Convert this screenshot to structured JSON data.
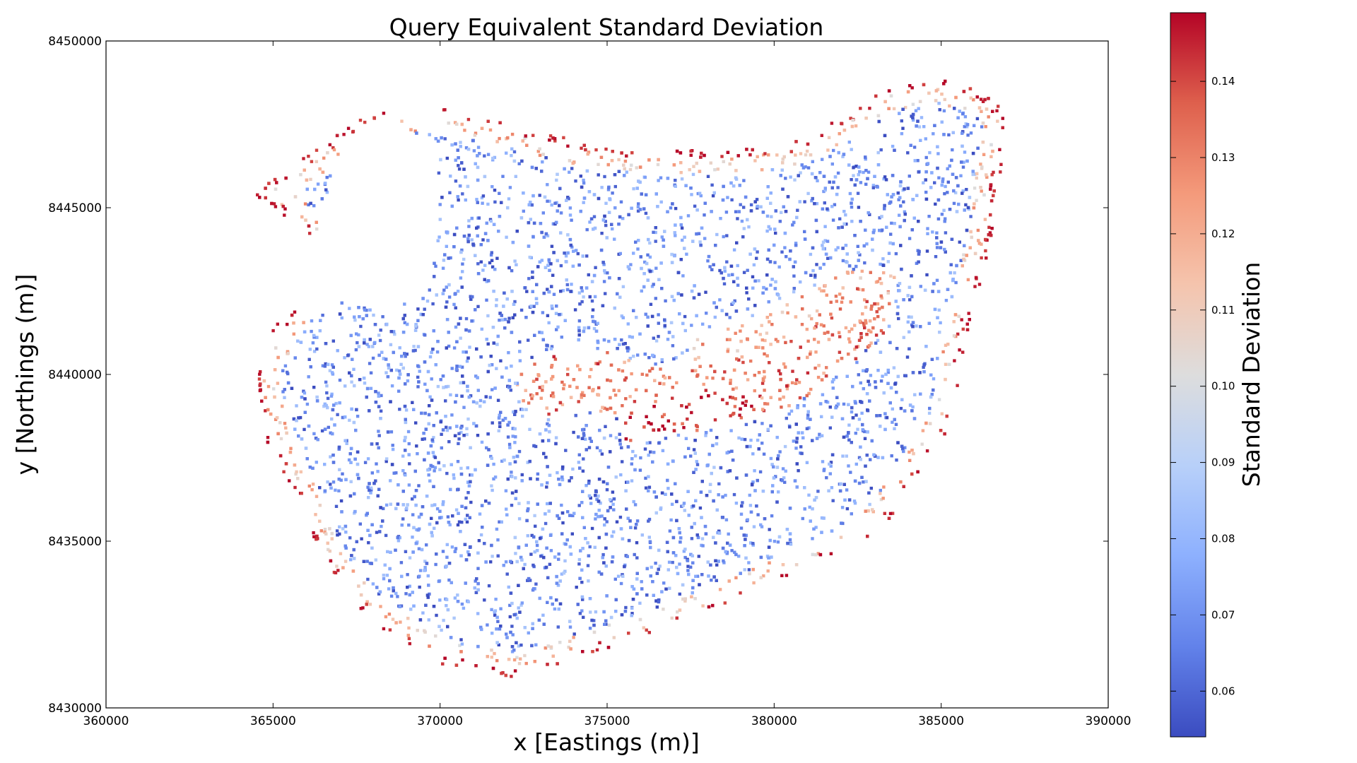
{
  "chart_data": {
    "type": "scatter",
    "title": "Query Equivalent Standard Deviation",
    "xlabel": "x [Eastings (m)]",
    "ylabel": "y [Northings (m)]",
    "xlim": [
      360000,
      390000
    ],
    "ylim": [
      8430000,
      8450000
    ],
    "xticks": [
      360000,
      365000,
      370000,
      375000,
      380000,
      385000,
      390000
    ],
    "yticks": [
      8430000,
      8435000,
      8440000,
      8445000,
      8450000
    ],
    "xtick_labels": [
      "360000",
      "365000",
      "370000",
      "375000",
      "380000",
      "385000",
      "390000"
    ],
    "ytick_labels": [
      "8430000",
      "8435000",
      "8440000",
      "8445000",
      "8450000"
    ],
    "grid": false,
    "colormap": "coolwarm",
    "colorbar": {
      "label": "Standard Deviation",
      "range": [
        0.054,
        0.149
      ],
      "ticks": [
        0.06,
        0.07,
        0.08,
        0.09,
        0.1,
        0.11,
        0.12,
        0.13,
        0.14
      ],
      "tick_labels": [
        "0.06",
        "0.07",
        "0.08",
        "0.09",
        "0.10",
        "0.11",
        "0.12",
        "0.13",
        "0.14"
      ]
    },
    "region_outline": [
      [
        364400,
        8445400
      ],
      [
        366200,
        8446700
      ],
      [
        368000,
        8447900
      ],
      [
        370000,
        8448000
      ],
      [
        372500,
        8447400
      ],
      [
        375000,
        8446800
      ],
      [
        378000,
        8446700
      ],
      [
        380500,
        8446900
      ],
      [
        382000,
        8447700
      ],
      [
        383400,
        8448600
      ],
      [
        384800,
        8448900
      ],
      [
        386200,
        8448500
      ],
      [
        387000,
        8447800
      ],
      [
        386500,
        8444000
      ],
      [
        385700,
        8441000
      ],
      [
        385300,
        8438400
      ],
      [
        384500,
        8437300
      ],
      [
        383400,
        8435500
      ],
      [
        382000,
        8434600
      ],
      [
        380000,
        8433700
      ],
      [
        377500,
        8432600
      ],
      [
        374500,
        8431600
      ],
      [
        372400,
        8430900
      ],
      [
        370000,
        8431300
      ],
      [
        368000,
        8432500
      ],
      [
        366500,
        8434300
      ],
      [
        365800,
        8436200
      ],
      [
        364800,
        8438000
      ],
      [
        364400,
        8439700
      ],
      [
        365000,
        8441400
      ],
      [
        366000,
        8442500
      ],
      [
        367200,
        8443400
      ],
      [
        364400,
        8445400
      ]
    ],
    "gaps": [
      {
        "center": [
          368300,
          8444800
        ],
        "radii": [
          1700,
          2900
        ]
      },
      {
        "center": [
          366200,
          8442700
        ],
        "radii": [
          1100,
          800
        ]
      },
      {
        "center": [
          369900,
          8447600
        ],
        "radii": [
          350,
          350
        ]
      },
      {
        "center": [
          367100,
          8438300
        ],
        "radii": [
          220,
          280
        ]
      },
      {
        "center": [
          372800,
          8432900
        ],
        "radii": [
          250,
          220
        ]
      },
      {
        "center": [
          373400,
          8432600
        ],
        "radii": [
          220,
          200
        ]
      }
    ],
    "high_bands": [
      {
        "points": [
          [
            373200,
            8439600
          ],
          [
            374800,
            8439800
          ],
          [
            376500,
            8439300
          ],
          [
            378500,
            8439400
          ],
          [
            380200,
            8439900
          ],
          [
            381600,
            8440900
          ],
          [
            382600,
            8441800
          ]
        ],
        "value": 0.13,
        "width": 900
      },
      {
        "points": [
          [
            375800,
            8438500
          ],
          [
            377500,
            8438800
          ],
          [
            379000,
            8439000
          ]
        ],
        "value": 0.145,
        "width": 500
      },
      {
        "points": [
          [
            378200,
            8440600
          ],
          [
            380000,
            8441200
          ],
          [
            381800,
            8442200
          ],
          [
            383000,
            8442600
          ]
        ],
        "value": 0.12,
        "width": 700
      }
    ],
    "base_value": 0.07,
    "edge_value": 0.145
  }
}
